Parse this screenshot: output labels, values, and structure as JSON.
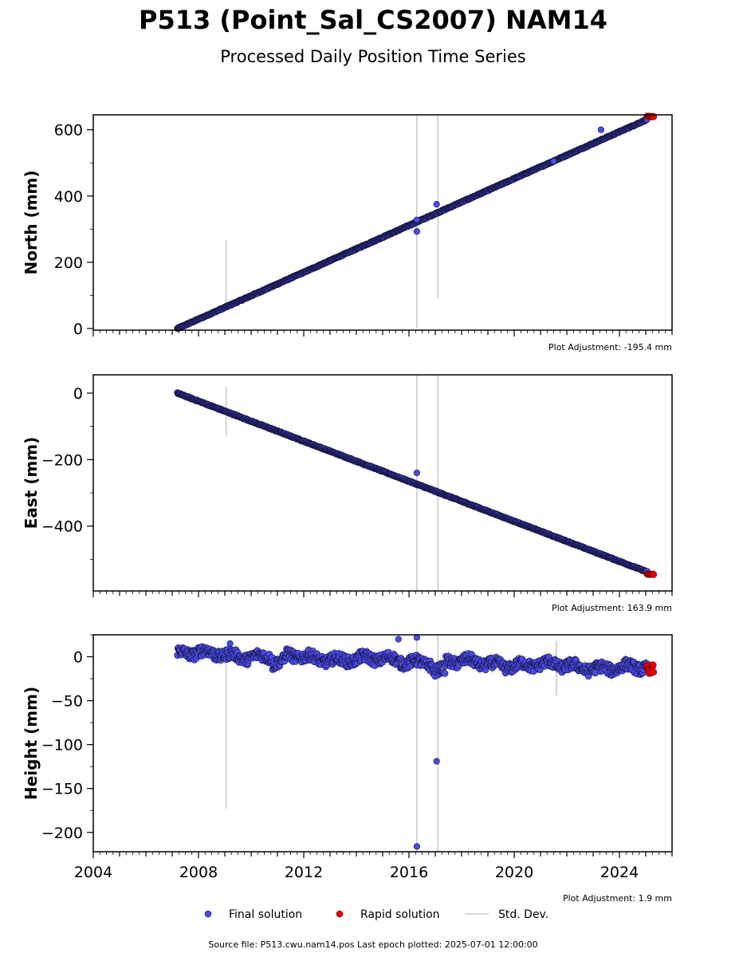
{
  "chart_data": {
    "type": "scatter",
    "title": "P513 (Point_Sal_CS2007) NAM14",
    "subtitle": "Processed Daily Position Time Series",
    "xlim": [
      2004,
      2026
    ],
    "x_ticks": [
      "2004",
      "2008",
      "2012",
      "2016",
      "2020",
      "2024"
    ],
    "x_tick_values": [
      2004,
      2008,
      2012,
      2016,
      2020,
      2024
    ],
    "colors": {
      "final": "#4a4ae8",
      "rapid": "#e60000",
      "stddev": "#c8c8c8",
      "edge": "#14143a"
    },
    "panels": [
      {
        "ylabel": "North (mm)",
        "ylim": [
          -5,
          645
        ],
        "yticks": [
          0,
          200,
          400,
          600
        ],
        "ytick_labels": [
          "0",
          "200",
          "400",
          "600"
        ],
        "adjustment": "Plot Adjustment: -195.4 mm",
        "trend": {
          "start": [
            2007.2,
            0
          ],
          "end": [
            2025.3,
            640
          ]
        },
        "noise": 1.5,
        "outliers": [
          [
            2016.3,
            293
          ],
          [
            2016.3,
            328
          ],
          [
            2017.05,
            375
          ],
          [
            2021.5,
            505
          ],
          [
            2023.3,
            600
          ]
        ],
        "stddev_bars": [
          [
            2009.05,
            65,
            268
          ],
          [
            2016.3,
            0,
            645
          ],
          [
            2017.1,
            92,
            645
          ]
        ]
      },
      {
        "ylabel": "East (mm)",
        "ylim": [
          -595,
          55
        ],
        "yticks": [
          0,
          -200,
          -400
        ],
        "ytick_labels": [
          "0",
          "−200",
          "−400"
        ],
        "adjustment": "Plot Adjustment: 163.9 mm",
        "trend": {
          "start": [
            2007.2,
            0
          ],
          "end": [
            2025.3,
            -545
          ]
        },
        "noise": 1.5,
        "outliers": [
          [
            2016.3,
            -240
          ]
        ],
        "stddev_bars": [
          [
            2009.05,
            -130,
            18
          ],
          [
            2016.3,
            -595,
            55
          ],
          [
            2017.1,
            -595,
            55
          ]
        ]
      },
      {
        "ylabel": "Height (mm)",
        "ylim": [
          -222,
          25
        ],
        "yticks": [
          0,
          -50,
          -100,
          -150,
          -200
        ],
        "ytick_labels": [
          "0",
          "−50",
          "−100",
          "−150",
          "−200"
        ],
        "adjustment": "Plot Adjustment: 1.9 mm",
        "trend": {
          "start": [
            2007.2,
            4
          ],
          "end": [
            2025.3,
            -14
          ]
        },
        "noise": 6,
        "outliers": [
          [
            2009.2,
            15
          ],
          [
            2015.6,
            20
          ],
          [
            2016.3,
            22
          ],
          [
            2016.3,
            -216
          ],
          [
            2017.05,
            -119
          ]
        ],
        "stddev_bars": [
          [
            2009.05,
            -173,
            12
          ],
          [
            2016.3,
            -222,
            25
          ],
          [
            2017.1,
            -222,
            25
          ],
          [
            2021.6,
            -44,
            18
          ]
        ]
      }
    ],
    "legend": {
      "position": "bottom-center",
      "final": "Final solution",
      "rapid": "Rapid solution",
      "stddev": "Std. Dev."
    },
    "source": "Source file: P513.cwu.nam14.pos  Last epoch plotted: 2025-07-01 12:00:00"
  }
}
